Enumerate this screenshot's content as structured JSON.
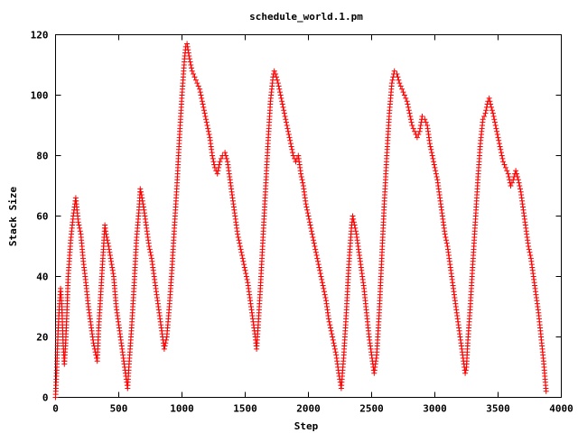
{
  "chart_data": {
    "type": "scatter",
    "title": "schedule_world.1.pm",
    "xlabel": "Step",
    "ylabel": "Stack Size",
    "xlim": [
      0,
      4000
    ],
    "ylim": [
      0,
      120
    ],
    "xticks": [
      0,
      500,
      1000,
      1500,
      2000,
      2500,
      3000,
      3500,
      4000
    ],
    "yticks": [
      0,
      20,
      40,
      60,
      80,
      100,
      120
    ],
    "marker": "+",
    "grid": false,
    "legend": "none",
    "series_color": "#ff0000",
    "series": [
      {
        "points": [
          [
            0,
            0
          ],
          [
            10,
            10
          ],
          [
            20,
            22
          ],
          [
            30,
            30
          ],
          [
            40,
            36
          ],
          [
            50,
            30
          ],
          [
            60,
            18
          ],
          [
            70,
            11
          ],
          [
            80,
            18
          ],
          [
            90,
            28
          ],
          [
            100,
            40
          ],
          [
            120,
            52
          ],
          [
            140,
            60
          ],
          [
            160,
            66
          ],
          [
            180,
            58
          ],
          [
            200,
            54
          ],
          [
            220,
            45
          ],
          [
            240,
            38
          ],
          [
            260,
            30
          ],
          [
            280,
            24
          ],
          [
            300,
            18
          ],
          [
            320,
            14
          ],
          [
            330,
            12
          ],
          [
            340,
            22
          ],
          [
            360,
            36
          ],
          [
            380,
            50
          ],
          [
            390,
            57
          ],
          [
            400,
            54
          ],
          [
            420,
            50
          ],
          [
            440,
            45
          ],
          [
            460,
            40
          ],
          [
            480,
            30
          ],
          [
            500,
            24
          ],
          [
            520,
            18
          ],
          [
            540,
            12
          ],
          [
            560,
            6
          ],
          [
            570,
            3
          ],
          [
            580,
            10
          ],
          [
            600,
            22
          ],
          [
            620,
            36
          ],
          [
            640,
            52
          ],
          [
            660,
            62
          ],
          [
            670,
            69
          ],
          [
            680,
            67
          ],
          [
            700,
            62
          ],
          [
            720,
            56
          ],
          [
            740,
            50
          ],
          [
            760,
            46
          ],
          [
            780,
            40
          ],
          [
            800,
            34
          ],
          [
            820,
            28
          ],
          [
            840,
            22
          ],
          [
            860,
            16
          ],
          [
            880,
            20
          ],
          [
            900,
            30
          ],
          [
            920,
            42
          ],
          [
            940,
            56
          ],
          [
            960,
            70
          ],
          [
            980,
            86
          ],
          [
            1000,
            100
          ],
          [
            1020,
            112
          ],
          [
            1030,
            116
          ],
          [
            1040,
            117
          ],
          [
            1060,
            112
          ],
          [
            1080,
            108
          ],
          [
            1100,
            106
          ],
          [
            1120,
            104
          ],
          [
            1140,
            102
          ],
          [
            1160,
            98
          ],
          [
            1180,
            94
          ],
          [
            1200,
            90
          ],
          [
            1220,
            86
          ],
          [
            1240,
            80
          ],
          [
            1260,
            76
          ],
          [
            1280,
            74
          ],
          [
            1300,
            78
          ],
          [
            1320,
            80
          ],
          [
            1340,
            81
          ],
          [
            1360,
            78
          ],
          [
            1380,
            72
          ],
          [
            1400,
            66
          ],
          [
            1420,
            60
          ],
          [
            1440,
            54
          ],
          [
            1460,
            50
          ],
          [
            1480,
            46
          ],
          [
            1500,
            42
          ],
          [
            1520,
            38
          ],
          [
            1540,
            32
          ],
          [
            1560,
            26
          ],
          [
            1580,
            20
          ],
          [
            1590,
            16
          ],
          [
            1600,
            22
          ],
          [
            1620,
            36
          ],
          [
            1640,
            52
          ],
          [
            1660,
            68
          ],
          [
            1680,
            84
          ],
          [
            1700,
            98
          ],
          [
            1720,
            106
          ],
          [
            1730,
            108
          ],
          [
            1740,
            107
          ],
          [
            1760,
            104
          ],
          [
            1780,
            100
          ],
          [
            1800,
            96
          ],
          [
            1820,
            92
          ],
          [
            1840,
            88
          ],
          [
            1860,
            84
          ],
          [
            1880,
            80
          ],
          [
            1900,
            78
          ],
          [
            1920,
            80
          ],
          [
            1940,
            74
          ],
          [
            1960,
            70
          ],
          [
            1980,
            64
          ],
          [
            2000,
            60
          ],
          [
            2020,
            56
          ],
          [
            2040,
            52
          ],
          [
            2060,
            48
          ],
          [
            2080,
            44
          ],
          [
            2100,
            40
          ],
          [
            2120,
            36
          ],
          [
            2140,
            32
          ],
          [
            2160,
            26
          ],
          [
            2180,
            22
          ],
          [
            2200,
            18
          ],
          [
            2220,
            14
          ],
          [
            2240,
            8
          ],
          [
            2260,
            3
          ],
          [
            2280,
            14
          ],
          [
            2300,
            28
          ],
          [
            2320,
            44
          ],
          [
            2340,
            56
          ],
          [
            2350,
            60
          ],
          [
            2360,
            58
          ],
          [
            2380,
            54
          ],
          [
            2400,
            48
          ],
          [
            2420,
            42
          ],
          [
            2440,
            36
          ],
          [
            2460,
            28
          ],
          [
            2480,
            20
          ],
          [
            2500,
            14
          ],
          [
            2520,
            8
          ],
          [
            2540,
            14
          ],
          [
            2560,
            28
          ],
          [
            2580,
            46
          ],
          [
            2600,
            64
          ],
          [
            2620,
            80
          ],
          [
            2640,
            94
          ],
          [
            2660,
            104
          ],
          [
            2680,
            108
          ],
          [
            2700,
            107
          ],
          [
            2720,
            104
          ],
          [
            2740,
            102
          ],
          [
            2760,
            100
          ],
          [
            2780,
            98
          ],
          [
            2800,
            94
          ],
          [
            2820,
            90
          ],
          [
            2840,
            88
          ],
          [
            2860,
            86
          ],
          [
            2880,
            88
          ],
          [
            2900,
            93
          ],
          [
            2920,
            92
          ],
          [
            2940,
            90
          ],
          [
            2960,
            84
          ],
          [
            2980,
            80
          ],
          [
            3000,
            76
          ],
          [
            3020,
            72
          ],
          [
            3040,
            66
          ],
          [
            3060,
            60
          ],
          [
            3080,
            54
          ],
          [
            3100,
            50
          ],
          [
            3120,
            44
          ],
          [
            3140,
            38
          ],
          [
            3160,
            32
          ],
          [
            3180,
            26
          ],
          [
            3200,
            20
          ],
          [
            3220,
            14
          ],
          [
            3240,
            8
          ],
          [
            3250,
            10
          ],
          [
            3260,
            18
          ],
          [
            3280,
            30
          ],
          [
            3300,
            44
          ],
          [
            3320,
            58
          ],
          [
            3340,
            72
          ],
          [
            3360,
            84
          ],
          [
            3380,
            92
          ],
          [
            3400,
            94
          ],
          [
            3420,
            98
          ],
          [
            3430,
            99
          ],
          [
            3440,
            97
          ],
          [
            3460,
            94
          ],
          [
            3480,
            90
          ],
          [
            3500,
            86
          ],
          [
            3520,
            82
          ],
          [
            3540,
            78
          ],
          [
            3560,
            76
          ],
          [
            3580,
            74
          ],
          [
            3600,
            70
          ],
          [
            3620,
            72
          ],
          [
            3640,
            75
          ],
          [
            3660,
            72
          ],
          [
            3680,
            68
          ],
          [
            3700,
            62
          ],
          [
            3720,
            56
          ],
          [
            3740,
            50
          ],
          [
            3760,
            46
          ],
          [
            3780,
            40
          ],
          [
            3800,
            34
          ],
          [
            3820,
            28
          ],
          [
            3840,
            20
          ],
          [
            3860,
            12
          ],
          [
            3880,
            2
          ]
        ]
      }
    ]
  }
}
